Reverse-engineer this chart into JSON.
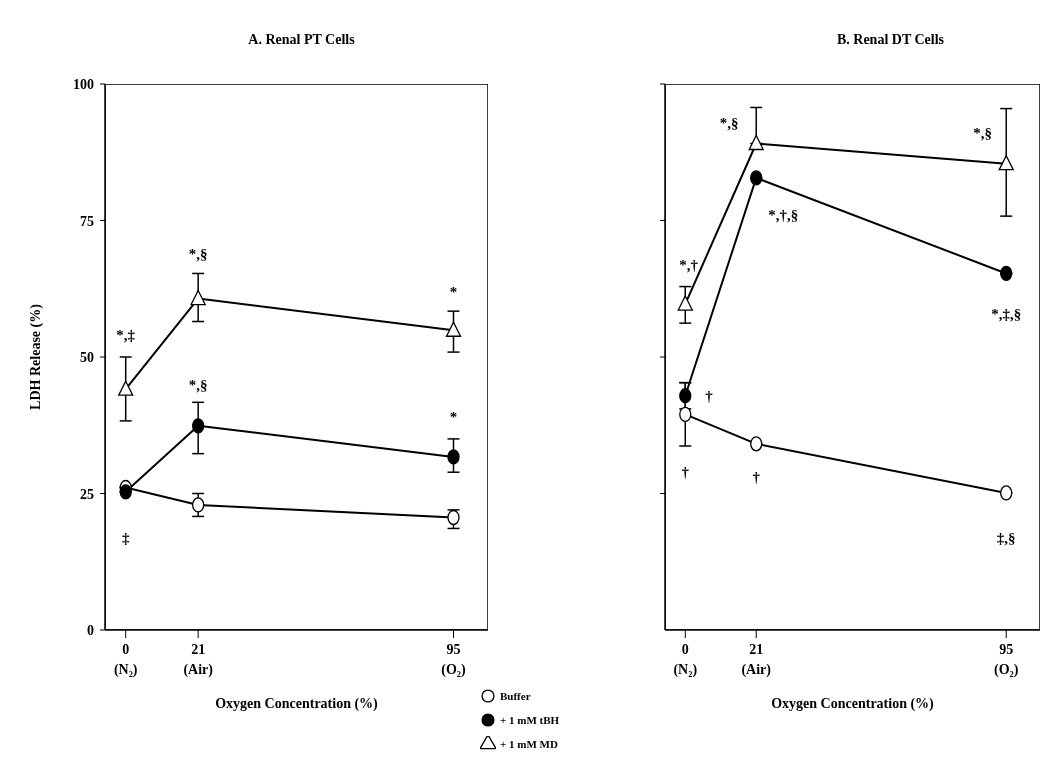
{
  "chart_data": [
    {
      "type": "line",
      "title": "A.  Renal PT Cells",
      "xlabel": "Oxygen Concentration (%)",
      "ylabel": "LDH Release (%)",
      "x": [
        0,
        21,
        95
      ],
      "xlim": [
        -6,
        105
      ],
      "xticks": [
        {
          "value": 0,
          "label": "0\n(N₂)"
        },
        {
          "value": 21,
          "label": "21\n(Air)"
        },
        {
          "value": 95,
          "label": "95\n(O₂)"
        }
      ],
      "ylim": [
        0,
        100
      ],
      "yticks": [
        0,
        25,
        50,
        75,
        100
      ],
      "legend": "bottom right",
      "grid": false,
      "line_style": "solid",
      "series": [
        {
          "name": "Buffer",
          "color": "#000000",
          "colors": [
            "#ffffff",
            "#ffffff",
            "#ffffff"
          ],
          "marker": "circle",
          "values": [
            26.1,
            22.9,
            20.6
          ],
          "errors": [
            null,
            [
              20.8,
              25
            ],
            [
              18.6,
              22
            ]
          ]
        },
        {
          "name": "+ 1 mM tBH",
          "color": "#000000",
          "marker": "circle",
          "values": [
            25.3,
            37.4,
            31.7
          ],
          "errors": [
            null,
            [
              32.3,
              41.7
            ],
            [
              28.9,
              35
            ]
          ]
        },
        {
          "name": "+ 1 mM MD",
          "color": "#000000",
          "colors": [
            "#ffffff",
            "#ffffff",
            "#ffffff"
          ],
          "marker": "triangle",
          "values": [
            44.1,
            60.7,
            54.9
          ],
          "errors": [
            [
              38.3,
              50
            ],
            [
              56.5,
              65.3
            ],
            [
              50.9,
              58.4
            ]
          ]
        }
      ],
      "annotations": [
        "*,‡",
        "*,§",
        "*",
        "*,§",
        "*",
        "‡"
      ]
    },
    {
      "type": "line",
      "title": "B.  Renal DT Cells",
      "xlabel": "Oxygen Concentration (%)",
      "x": [
        0,
        21,
        95
      ],
      "xlim": [
        -6,
        105
      ],
      "xticks": [
        {
          "value": 0,
          "label": "0\n(N₂)"
        },
        {
          "value": 21,
          "label": "21\n(Air)"
        },
        {
          "value": 95,
          "label": "95\n(O₂)"
        }
      ],
      "ylim": [
        0,
        100
      ],
      "yticks": [
        {
          "value": 25,
          "label": null
        },
        {
          "value": 50,
          "label": null
        },
        {
          "value": 75,
          "label": null
        },
        {
          "value": 100,
          "label": null
        }
      ],
      "tick_labels": "x",
      "grid": false,
      "line_style": "solid",
      "series": [
        {
          "color": "#000000",
          "colors": [
            "#ffffff",
            "#ffffff",
            "#ffffff"
          ],
          "marker": "circle",
          "values": [
            39.5,
            34.1,
            25.1
          ],
          "errors": [
            [
              33.7,
              45.3
            ],
            null,
            null
          ]
        },
        {
          "color": "#000000",
          "marker": "circle",
          "values": [
            42.9,
            82.8,
            65.3
          ],
          "errors": [
            [
              40.5,
              45.3
            ],
            null,
            null
          ]
        },
        {
          "color": "#000000",
          "colors": [
            "#ffffff",
            "#ffffff",
            "#ffffff"
          ],
          "marker": "triangle",
          "values": [
            59.7,
            89.1,
            85.4
          ],
          "errors": [
            [
              56.2,
              62.9
            ],
            [
              89.1,
              95.7
            ],
            [
              75.8,
              95.5
            ]
          ]
        }
      ],
      "annotations": [
        "*,§",
        "*,§",
        "*,†,§",
        "*,†",
        "*,‡,§",
        "†",
        "†",
        "†",
        "‡,§"
      ]
    }
  ]
}
